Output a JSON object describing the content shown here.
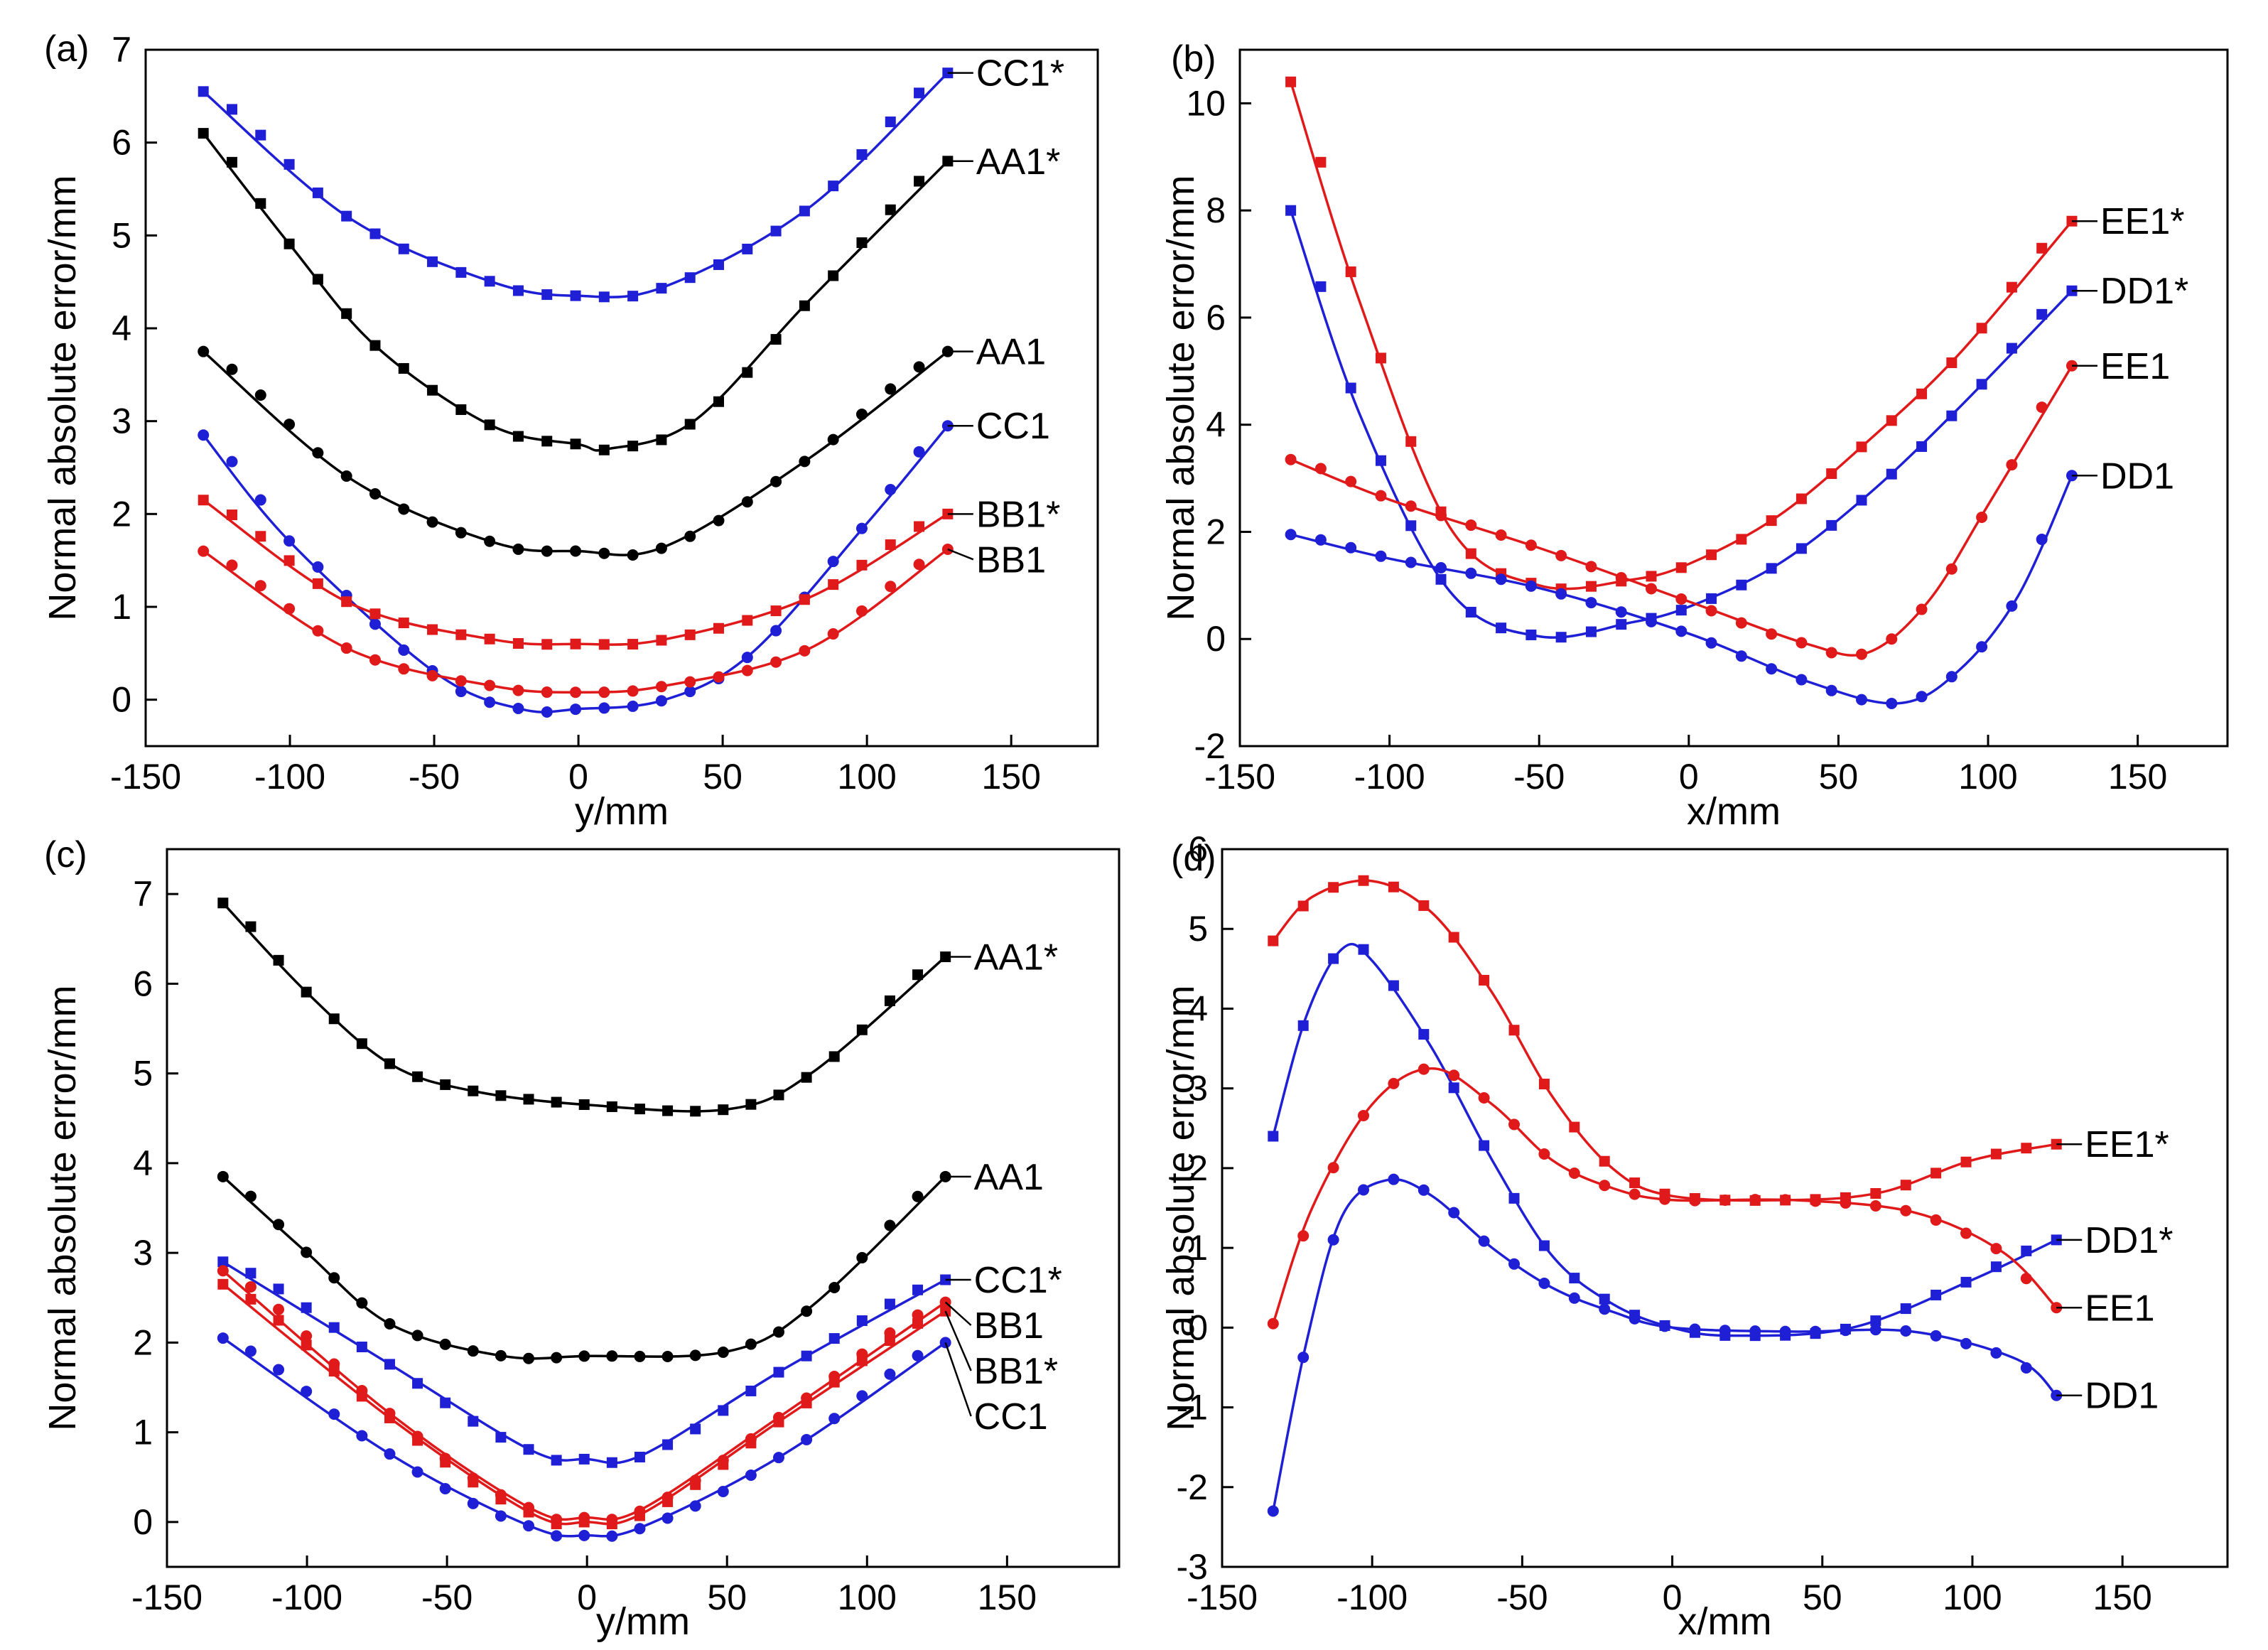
{
  "chart_data": [
    {
      "panel": "(a)",
      "type": "line",
      "xlabel": "y/mm",
      "ylabel": "Normal absolute error/mm",
      "xlim": [
        -150,
        180
      ],
      "ylim": [
        -0.5,
        7
      ],
      "xticks": [
        "-150",
        "-100",
        "-50",
        "0",
        "50",
        "100",
        "150"
      ],
      "yticks": [
        "0",
        "1",
        "2",
        "3",
        "4",
        "5",
        "6",
        "7"
      ],
      "series": [
        {
          "name": "CC1*",
          "color": "#1f1fd6",
          "marker": "square",
          "x": [
            -130,
            -80,
            -30,
            0,
            30,
            80,
            128
          ],
          "y": [
            6.55,
            5.2,
            4.5,
            4.35,
            4.45,
            5.3,
            6.75
          ]
        },
        {
          "name": "AA1*",
          "color": "#000000",
          "marker": "square",
          "x": [
            -130,
            -100,
            -70,
            -30,
            0,
            10,
            40,
            80,
            128
          ],
          "y": [
            6.1,
            4.9,
            3.8,
            2.95,
            2.75,
            2.7,
            3.0,
            4.3,
            5.8
          ]
        },
        {
          "name": "AA1",
          "color": "#000000",
          "marker": "circle",
          "x": [
            -130,
            -80,
            -30,
            0,
            30,
            80,
            128
          ],
          "y": [
            3.75,
            2.4,
            1.7,
            1.6,
            1.65,
            2.6,
            3.75
          ]
        },
        {
          "name": "CC1",
          "color": "#1f1fd6",
          "marker": "circle",
          "x": [
            -130,
            -100,
            -50,
            -20,
            0,
            30,
            60,
            100,
            128
          ],
          "y": [
            2.85,
            1.7,
            0.3,
            -0.1,
            -0.1,
            0.0,
            0.5,
            1.9,
            2.95
          ]
        },
        {
          "name": "BB1*",
          "color": "#e01a1a",
          "marker": "square",
          "x": [
            -130,
            -80,
            -30,
            0,
            30,
            80,
            128
          ],
          "y": [
            2.15,
            1.05,
            0.65,
            0.6,
            0.65,
            1.1,
            2.0
          ]
        },
        {
          "name": "BB1",
          "color": "#e01a1a",
          "marker": "circle",
          "x": [
            -130,
            -80,
            -30,
            0,
            30,
            80,
            128
          ],
          "y": [
            1.6,
            0.55,
            0.15,
            0.08,
            0.15,
            0.55,
            1.62
          ]
        }
      ],
      "label_order": [
        "CC1*",
        "AA1*",
        "AA1",
        "CC1",
        "BB1*",
        "BB1"
      ]
    },
    {
      "panel": "(b)",
      "type": "line",
      "xlabel": "x/mm",
      "ylabel": "Normal absolute error/mm",
      "xlim": [
        -150,
        180
      ],
      "ylim": [
        -2,
        11
      ],
      "xticks": [
        "-150",
        "-100",
        "-50",
        "0",
        "50",
        "100",
        "150"
      ],
      "yticks": [
        "-2",
        "0",
        "2",
        "4",
        "6",
        "8",
        "10"
      ],
      "series": [
        {
          "name": "EE1*",
          "color": "#e01a1a",
          "marker": "square",
          "x": [
            -133,
            -110,
            -80,
            -50,
            -20,
            0,
            30,
            60,
            90,
            128
          ],
          "y": [
            10.4,
            6.3,
            2.1,
            1.0,
            1.1,
            1.4,
            2.3,
            3.7,
            5.3,
            7.8
          ]
        },
        {
          "name": "DD1*",
          "color": "#1f1fd6",
          "marker": "square",
          "x": [
            -133,
            -110,
            -80,
            -50,
            -20,
            0,
            30,
            60,
            90,
            128
          ],
          "y": [
            8.0,
            4.2,
            0.9,
            0.05,
            0.3,
            0.6,
            1.4,
            2.7,
            4.3,
            6.5
          ]
        },
        {
          "name": "EE1",
          "color": "#e01a1a",
          "marker": "circle",
          "x": [
            -133,
            -100,
            -50,
            0,
            40,
            60,
            80,
            100,
            128
          ],
          "y": [
            3.35,
            2.6,
            1.7,
            0.7,
            -0.1,
            -0.25,
            0.7,
            2.5,
            5.1
          ]
        },
        {
          "name": "DD1",
          "color": "#1f1fd6",
          "marker": "circle",
          "x": [
            -133,
            -100,
            -50,
            0,
            40,
            70,
            90,
            110,
            128
          ],
          "y": [
            1.95,
            1.5,
            0.95,
            0.1,
            -0.8,
            -1.2,
            -0.6,
            0.8,
            3.05
          ]
        }
      ],
      "label_order": [
        "EE1*",
        "DD1*",
        "EE1",
        "DD1"
      ]
    },
    {
      "panel": "(c)",
      "type": "line",
      "xlabel": "y/mm",
      "ylabel": "Normal absolute error/mm",
      "xlim": [
        -150,
        190
      ],
      "ylim": [
        -0.5,
        7.5
      ],
      "xticks": [
        "-150",
        "-100",
        "-50",
        "0",
        "50",
        "100",
        "150"
      ],
      "yticks": [
        "0",
        "1",
        "2",
        "3",
        "4",
        "5",
        "6",
        "7"
      ],
      "series": [
        {
          "name": "AA1*",
          "color": "#000000",
          "marker": "square",
          "x": [
            -130,
            -100,
            -70,
            -40,
            0,
            50,
            80,
            128
          ],
          "y": [
            6.9,
            5.9,
            5.1,
            4.8,
            4.65,
            4.6,
            5.0,
            6.3
          ]
        },
        {
          "name": "AA1",
          "color": "#000000",
          "marker": "circle",
          "x": [
            -130,
            -100,
            -70,
            -30,
            0,
            50,
            80,
            128
          ],
          "y": [
            3.85,
            3.0,
            2.2,
            1.85,
            1.85,
            1.9,
            2.4,
            3.85
          ]
        },
        {
          "name": "CC1*",
          "color": "#1f1fd6",
          "marker": "square",
          "x": [
            -130,
            -70,
            -20,
            0,
            20,
            70,
            128
          ],
          "y": [
            2.9,
            1.75,
            0.8,
            0.7,
            0.75,
            1.7,
            2.7
          ]
        },
        {
          "name": "BB1",
          "color": "#e01a1a",
          "marker": "circle",
          "x": [
            -130,
            -70,
            -20,
            0,
            20,
            70,
            128
          ],
          "y": [
            2.8,
            1.2,
            0.15,
            0.05,
            0.15,
            1.2,
            2.45
          ]
        },
        {
          "name": "BB1*",
          "color": "#e01a1a",
          "marker": "square",
          "x": [
            -130,
            -70,
            -20,
            0,
            20,
            70,
            128
          ],
          "y": [
            2.65,
            1.15,
            0.1,
            0.0,
            0.1,
            1.15,
            2.35
          ]
        },
        {
          "name": "CC1",
          "color": "#1f1fd6",
          "marker": "circle",
          "x": [
            -130,
            -70,
            -20,
            0,
            20,
            70,
            128
          ],
          "y": [
            2.05,
            0.75,
            -0.05,
            -0.15,
            -0.05,
            0.75,
            2.0
          ]
        }
      ],
      "label_order": [
        "AA1*",
        "AA1",
        "CC1*",
        "BB1",
        "BB1*",
        "CC1"
      ]
    },
    {
      "panel": "(d)",
      "type": "line",
      "xlabel": "x/mm",
      "ylabel": "Normal absolute error/mm",
      "xlim": [
        -150,
        185
      ],
      "ylim": [
        -3,
        6
      ],
      "xticks": [
        "-150",
        "-100",
        "-50",
        "0",
        "50",
        "100",
        "150"
      ],
      "yticks": [
        "-3",
        "-2",
        "-1",
        "0",
        "1",
        "2",
        "3",
        "4",
        "5",
        "6"
      ],
      "series": [
        {
          "name": "EE1*",
          "color": "#e01a1a",
          "marker": "square",
          "x": [
            -133,
            -120,
            -100,
            -80,
            -60,
            -40,
            -20,
            0,
            40,
            70,
            100,
            128
          ],
          "y": [
            4.85,
            5.4,
            5.6,
            5.2,
            4.2,
            2.9,
            2.0,
            1.65,
            1.6,
            1.7,
            2.1,
            2.3
          ]
        },
        {
          "name": "DD1*",
          "color": "#1f1fd6",
          "marker": "square",
          "x": [
            -133,
            -122,
            -110,
            -100,
            -80,
            -60,
            -40,
            -20,
            0,
            20,
            60,
            100,
            128
          ],
          "y": [
            2.4,
            3.9,
            4.75,
            4.6,
            3.5,
            2.1,
            0.9,
            0.3,
            0.0,
            -0.1,
            0.0,
            0.6,
            1.1
          ]
        },
        {
          "name": "EE1",
          "color": "#e01a1a",
          "marker": "circle",
          "x": [
            -133,
            -120,
            -100,
            -80,
            -60,
            -40,
            -20,
            0,
            40,
            80,
            110,
            128
          ],
          "y": [
            0.05,
            1.5,
            2.8,
            3.25,
            2.8,
            2.1,
            1.75,
            1.6,
            1.6,
            1.45,
            0.95,
            0.25
          ]
        },
        {
          "name": "DD1",
          "color": "#1f1fd6",
          "marker": "circle",
          "x": [
            -133,
            -122,
            -110,
            -95,
            -80,
            -60,
            -40,
            -20,
            0,
            40,
            80,
            115,
            128
          ],
          "y": [
            -2.3,
            -0.2,
            1.4,
            1.85,
            1.65,
            1.0,
            0.5,
            0.2,
            0.0,
            -0.05,
            -0.05,
            -0.4,
            -0.85
          ]
        }
      ],
      "label_order": [
        "EE1*",
        "DD1*",
        "EE1",
        "DD1"
      ]
    }
  ]
}
